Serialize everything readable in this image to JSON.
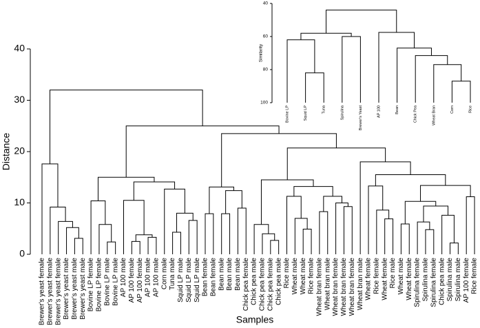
{
  "chart_data": [
    {
      "type": "dendrogram",
      "ylabel": "Distance",
      "xlabel": "Samples",
      "ylim": [
        0,
        40
      ],
      "yticks": [
        0,
        10,
        20,
        30,
        40
      ],
      "tree": {
        "height": 32.0,
        "children": [
          {
            "height": 17.6,
            "children": [
              "Brewer's yeast female",
              {
                "height": 9.2,
                "children": [
                  "Brewer's yeast female",
                  {
                    "height": 6.4,
                    "children": [
                      "Brewer's yeast female",
                      {
                        "height": 5.2,
                        "children": [
                          "Brewer's yeast male",
                          {
                            "height": 3.1,
                            "children": [
                              "Brewer's yeast male",
                              "Brewer's yeast male"
                            ]
                          }
                        ]
                      }
                    ]
                  }
                ]
              }
            ]
          },
          {
            "height": 25.0,
            "children": [
              {
                "height": 15.0,
                "children": [
                  {
                    "height": 10.4,
                    "children": [
                      "Bovine LP female",
                      {
                        "height": 5.8,
                        "children": [
                          "Bovine LP female",
                          {
                            "height": 2.4,
                            "children": [
                              "Bovine LP male",
                              "Bovine LP male"
                            ]
                          }
                        ]
                      }
                    ]
                  },
                  {
                    "height": 14.1,
                    "children": [
                      {
                        "height": 10.5,
                        "children": [
                          "AP 100 male",
                          {
                            "height": 3.8,
                            "children": [
                              {
                                "height": 2.5,
                                "children": [
                                  "AP 100 female",
                                  "AP 100 female"
                                ]
                              },
                              {
                                "height": 3.3,
                                "children": [
                                  "AP 100 male",
                                  "AP 100 male"
                                ]
                              }
                            ]
                          }
                        ]
                      },
                      {
                        "height": 12.7,
                        "children": [
                          "Corn male",
                          {
                            "height": 8.0,
                            "children": [
                              {
                                "height": 4.3,
                                "children": [
                                  "Tuna male",
                                  "Squid LP male"
                                ]
                              },
                              {
                                "height": 6.6,
                                "children": [
                                  "Squid LP male",
                                  "Squid LP male"
                                ]
                              }
                            ]
                          }
                        ]
                      }
                    ]
                  }
                ]
              },
              {
                "height": 23.5,
                "children": [
                  {
                    "height": 13.1,
                    "children": [
                      {
                        "height": 7.9,
                        "children": [
                          "Bean female",
                          "Bean female"
                        ]
                      },
                      {
                        "height": 12.4,
                        "children": [
                          {
                            "height": 7.9,
                            "children": [
                              "Bean male",
                              "Bean male"
                            ]
                          },
                          {
                            "height": 9.0,
                            "children": [
                              "Bean male",
                              "Chick pea female"
                            ]
                          }
                        ]
                      }
                    ]
                  },
                  {
                    "height": 20.7,
                    "children": [
                      {
                        "height": 14.5,
                        "children": [
                          {
                            "height": 5.8,
                            "children": [
                              "Chick pea male",
                              {
                                "height": 4.0,
                                "children": [
                                  "Chick pea female",
                                  {
                                    "height": 2.7,
                                    "children": [
                                      "Chick pea female",
                                      "Chick pea male"
                                    ]
                                  }
                                ]
                              }
                            ]
                          },
                          {
                            "height": 13.2,
                            "children": [
                              {
                                "height": 11.3,
                                "children": [
                                  "Rice male",
                                  {
                                    "height": 7.0,
                                    "children": [
                                      "Wheat male",
                                      {
                                        "height": 4.9,
                                        "children": [
                                          "Wheat male",
                                          "Rice female"
                                        ]
                                      }
                                    ]
                                  }
                                ]
                              },
                              {
                                "height": 11.3,
                                "children": [
                                  {
                                    "height": 8.3,
                                    "children": [
                                      "Wheat bran female",
                                      "Wheat bran male"
                                    ]
                                  },
                                  {
                                    "height": 10.0,
                                    "children": [
                                      "Wheat bran female",
                                      {
                                        "height": 9.3,
                                        "children": [
                                          "Wheat bran female",
                                          "Wheat bran female"
                                        ]
                                      }
                                    ]
                                  }
                                ]
                              }
                            ]
                          }
                        ]
                      },
                      {
                        "height": 18.0,
                        "children": [
                          "Wheat bran male",
                          {
                            "height": 15.5,
                            "children": [
                              {
                                "height": 13.3,
                                "children": [
                                  "Wheat female",
                                  {
                                    "height": 8.6,
                                    "children": [
                                      "Rice female",
                                      {
                                        "height": 6.9,
                                        "children": [
                                          "Wheat female",
                                          "Rice male"
                                        ]
                                      }
                                    ]
                                  }
                                ]
                              },
                              {
                                "height": 13.4,
                                "children": [
                                  {
                                    "height": 10.3,
                                    "children": [
                                      {
                                        "height": 5.9,
                                        "children": [
                                          "Wheat male",
                                          "Wheat female"
                                        ]
                                      },
                                      {
                                        "height": 9.4,
                                        "children": [
                                          {
                                            "height": 6.3,
                                            "children": [
                                              "Spirulina female",
                                              {
                                                "height": 4.8,
                                                "children": [
                                                  "Spirulina male",
                                                  "Spirulina female"
                                                ]
                                              }
                                            ]
                                          },
                                          {
                                            "height": 7.6,
                                            "children": [
                                              "Chick pea male",
                                              {
                                                "height": 2.2,
                                                "children": [
                                                  "Spirulina male",
                                                  "Spirulina male"
                                                ]
                                              }
                                            ]
                                          }
                                        ]
                                      }
                                    ]
                                  },
                                  {
                                    "height": 11.2,
                                    "children": [
                                      "AP 100 female",
                                      "Rice female"
                                    ]
                                  }
                                ]
                              }
                            ]
                          }
                        ]
                      }
                    ]
                  }
                ]
              }
            ]
          }
        ]
      }
    },
    {
      "type": "dendrogram",
      "ylabel": "Similarity",
      "ylim": [
        100,
        40
      ],
      "yticks": [
        40,
        60,
        80,
        100
      ],
      "tree": {
        "height": 44,
        "children": [
          {
            "height": 58,
            "children": [
              {
                "height": 62,
                "children": [
                  "Bovine LP",
                  {
                    "height": 82,
                    "children": [
                      "Squid LP",
                      "Tuna"
                    ]
                  }
                ]
              },
              {
                "height": 60,
                "children": [
                  "Spirulina",
                  "Brewer's Yeast"
                ]
              }
            ]
          },
          {
            "height": 57.5,
            "children": [
              "AP 100",
              {
                "height": 67,
                "children": [
                  "Bean",
                  {
                    "height": 71.5,
                    "children": [
                      "Chick Pea",
                      {
                        "height": 77,
                        "children": [
                          "Wheat Bran",
                          {
                            "height": 87,
                            "children": [
                              "Corn",
                              "Rice"
                            ]
                          }
                        ]
                      }
                    ]
                  }
                ]
              }
            ]
          }
        ]
      }
    }
  ]
}
